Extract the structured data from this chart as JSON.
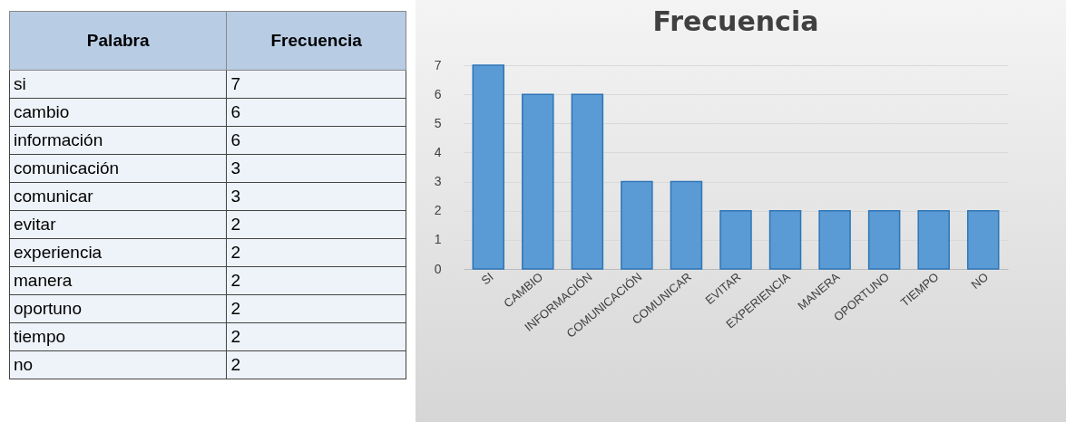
{
  "chart_data": [
    {
      "type": "other",
      "xlabel": "Palabra",
      "ylabel": "Frecuencia",
      "categories": [
        "si",
        "cambio",
        "información",
        "comunicación",
        "comunicar",
        "evitar",
        "experiencia",
        "manera",
        "oportuno",
        "tiempo",
        "no"
      ],
      "values": [
        7,
        6,
        6,
        3,
        3,
        2,
        2,
        2,
        2,
        2,
        2
      ],
      "data_labels": true
    },
    {
      "type": "bar",
      "title": "Frecuencia",
      "categories": [
        "SI",
        "CAMBIO",
        "INFORMACIÓN",
        "COMUNICACIÓN",
        "COMUNICAR",
        "EVITAR",
        "EXPERIENCIA",
        "MANERA",
        "OPORTUNO",
        "TIEMPO",
        "NO"
      ],
      "values": [
        7,
        6,
        6,
        3,
        3,
        2,
        2,
        2,
        2,
        2,
        2
      ],
      "color": "#5b9bd5",
      "ylim": [
        0,
        7
      ],
      "yticks": [
        0,
        1,
        2,
        3,
        4,
        5,
        6,
        7
      ],
      "grid": "y"
    }
  ]
}
